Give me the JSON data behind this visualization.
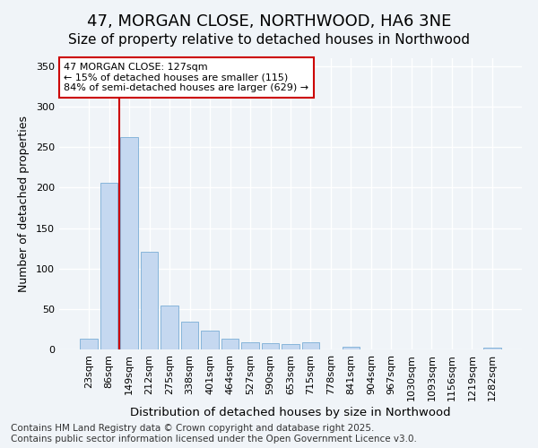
{
  "title": "47, MORGAN CLOSE, NORTHWOOD, HA6 3NE",
  "subtitle": "Size of property relative to detached houses in Northwood",
  "xlabel": "Distribution of detached houses by size in Northwood",
  "ylabel": "Number of detached properties",
  "categories": [
    "23sqm",
    "86sqm",
    "149sqm",
    "212sqm",
    "275sqm",
    "338sqm",
    "401sqm",
    "464sqm",
    "527sqm",
    "590sqm",
    "653sqm",
    "715sqm",
    "778sqm",
    "841sqm",
    "904sqm",
    "967sqm",
    "1030sqm",
    "1093sqm",
    "1156sqm",
    "1219sqm",
    "1282sqm"
  ],
  "values": [
    13,
    206,
    263,
    121,
    54,
    34,
    23,
    13,
    9,
    8,
    7,
    9,
    0,
    3,
    0,
    0,
    0,
    0,
    0,
    0,
    2
  ],
  "bar_color": "#c5d8f0",
  "bar_edge_color": "#7aadd6",
  "background_color": "#f0f4f8",
  "plot_bg_color": "#f0f4f8",
  "grid_color": "#ffffff",
  "vline_x_index": 2,
  "vline_color": "#cc0000",
  "annotation_text": "47 MORGAN CLOSE: 127sqm\n← 15% of detached houses are smaller (115)\n84% of semi-detached houses are larger (629) →",
  "annotation_box_facecolor": "#ffffff",
  "annotation_box_edgecolor": "#cc0000",
  "ylim": [
    0,
    360
  ],
  "yticks": [
    0,
    50,
    100,
    150,
    200,
    250,
    300,
    350
  ],
  "title_fontsize": 13,
  "subtitle_fontsize": 11,
  "xlabel_fontsize": 9.5,
  "ylabel_fontsize": 9,
  "tick_fontsize": 8,
  "annotation_fontsize": 8,
  "footer_text": "Contains HM Land Registry data © Crown copyright and database right 2025.\nContains public sector information licensed under the Open Government Licence v3.0.",
  "footer_fontsize": 7.5
}
